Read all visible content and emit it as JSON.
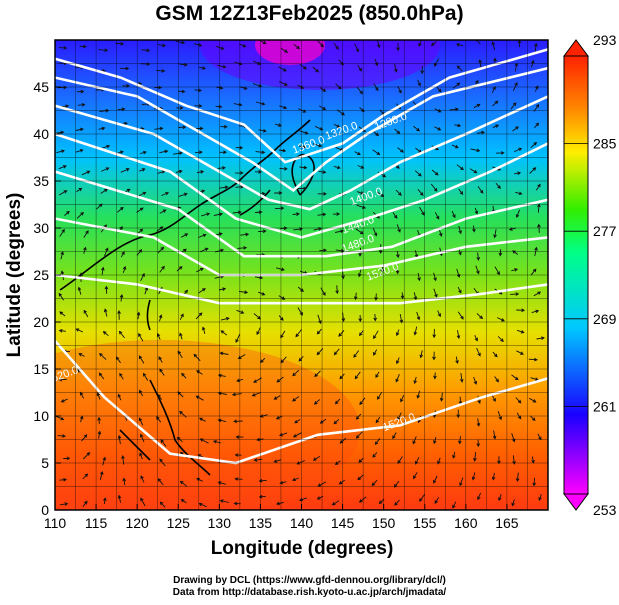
{
  "title": "GSM 12Z13Feb2025 (850.0hPa)",
  "credit": {
    "line1": "Drawing by DCL (https://www.gfd-dennou.org/library/dcl/)",
    "line2": "Data from http://database.rish.kyoto-u.ac.jp/arch/jmadata/"
  },
  "chart_data": {
    "type": "heatmap",
    "title": "GSM 12Z13Feb2025 (850.0hPa)",
    "xlabel": "Longitude (degrees)",
    "ylabel": "Latitude  (degrees)",
    "xlim": [
      110,
      170
    ],
    "ylim": [
      0,
      50
    ],
    "x_ticks": [
      "110",
      "115",
      "120",
      "125",
      "130",
      "135",
      "140",
      "145",
      "150",
      "155",
      "160",
      "165"
    ],
    "y_ticks": [
      "0",
      "5",
      "10",
      "15",
      "20",
      "25",
      "30",
      "35",
      "40",
      "45"
    ],
    "grid": true,
    "field": "temperature (shaded)",
    "colorbar": {
      "min": 253,
      "max": 293,
      "ticks": [
        "253",
        "261",
        "269",
        "277",
        "285",
        "293"
      ],
      "colors": [
        "#ff00ff",
        "#1a00ff",
        "#00c8ff",
        "#00ff88",
        "#33ee00",
        "#ffee00",
        "#ff8800",
        "#ff2200"
      ]
    },
    "contours": [
      {
        "label": "1280.0",
        "lon": 151,
        "lat": 41
      },
      {
        "label": "1320.0",
        "lon": 145,
        "lat": 40
      },
      {
        "label": "1360.0",
        "lon": 141,
        "lat": 38.5
      },
      {
        "label": "1400.0",
        "lon": 148,
        "lat": 33
      },
      {
        "label": "1440.0",
        "lon": 147,
        "lat": 30
      },
      {
        "label": "1480.0",
        "lon": 147,
        "lat": 28
      },
      {
        "label": "1520.0",
        "lon": 150,
        "lat": 25
      },
      {
        "label": "1520.0",
        "lon": 152,
        "lat": 9
      },
      {
        "label": "1520.0",
        "lon": 111,
        "lat": 14
      }
    ]
  }
}
